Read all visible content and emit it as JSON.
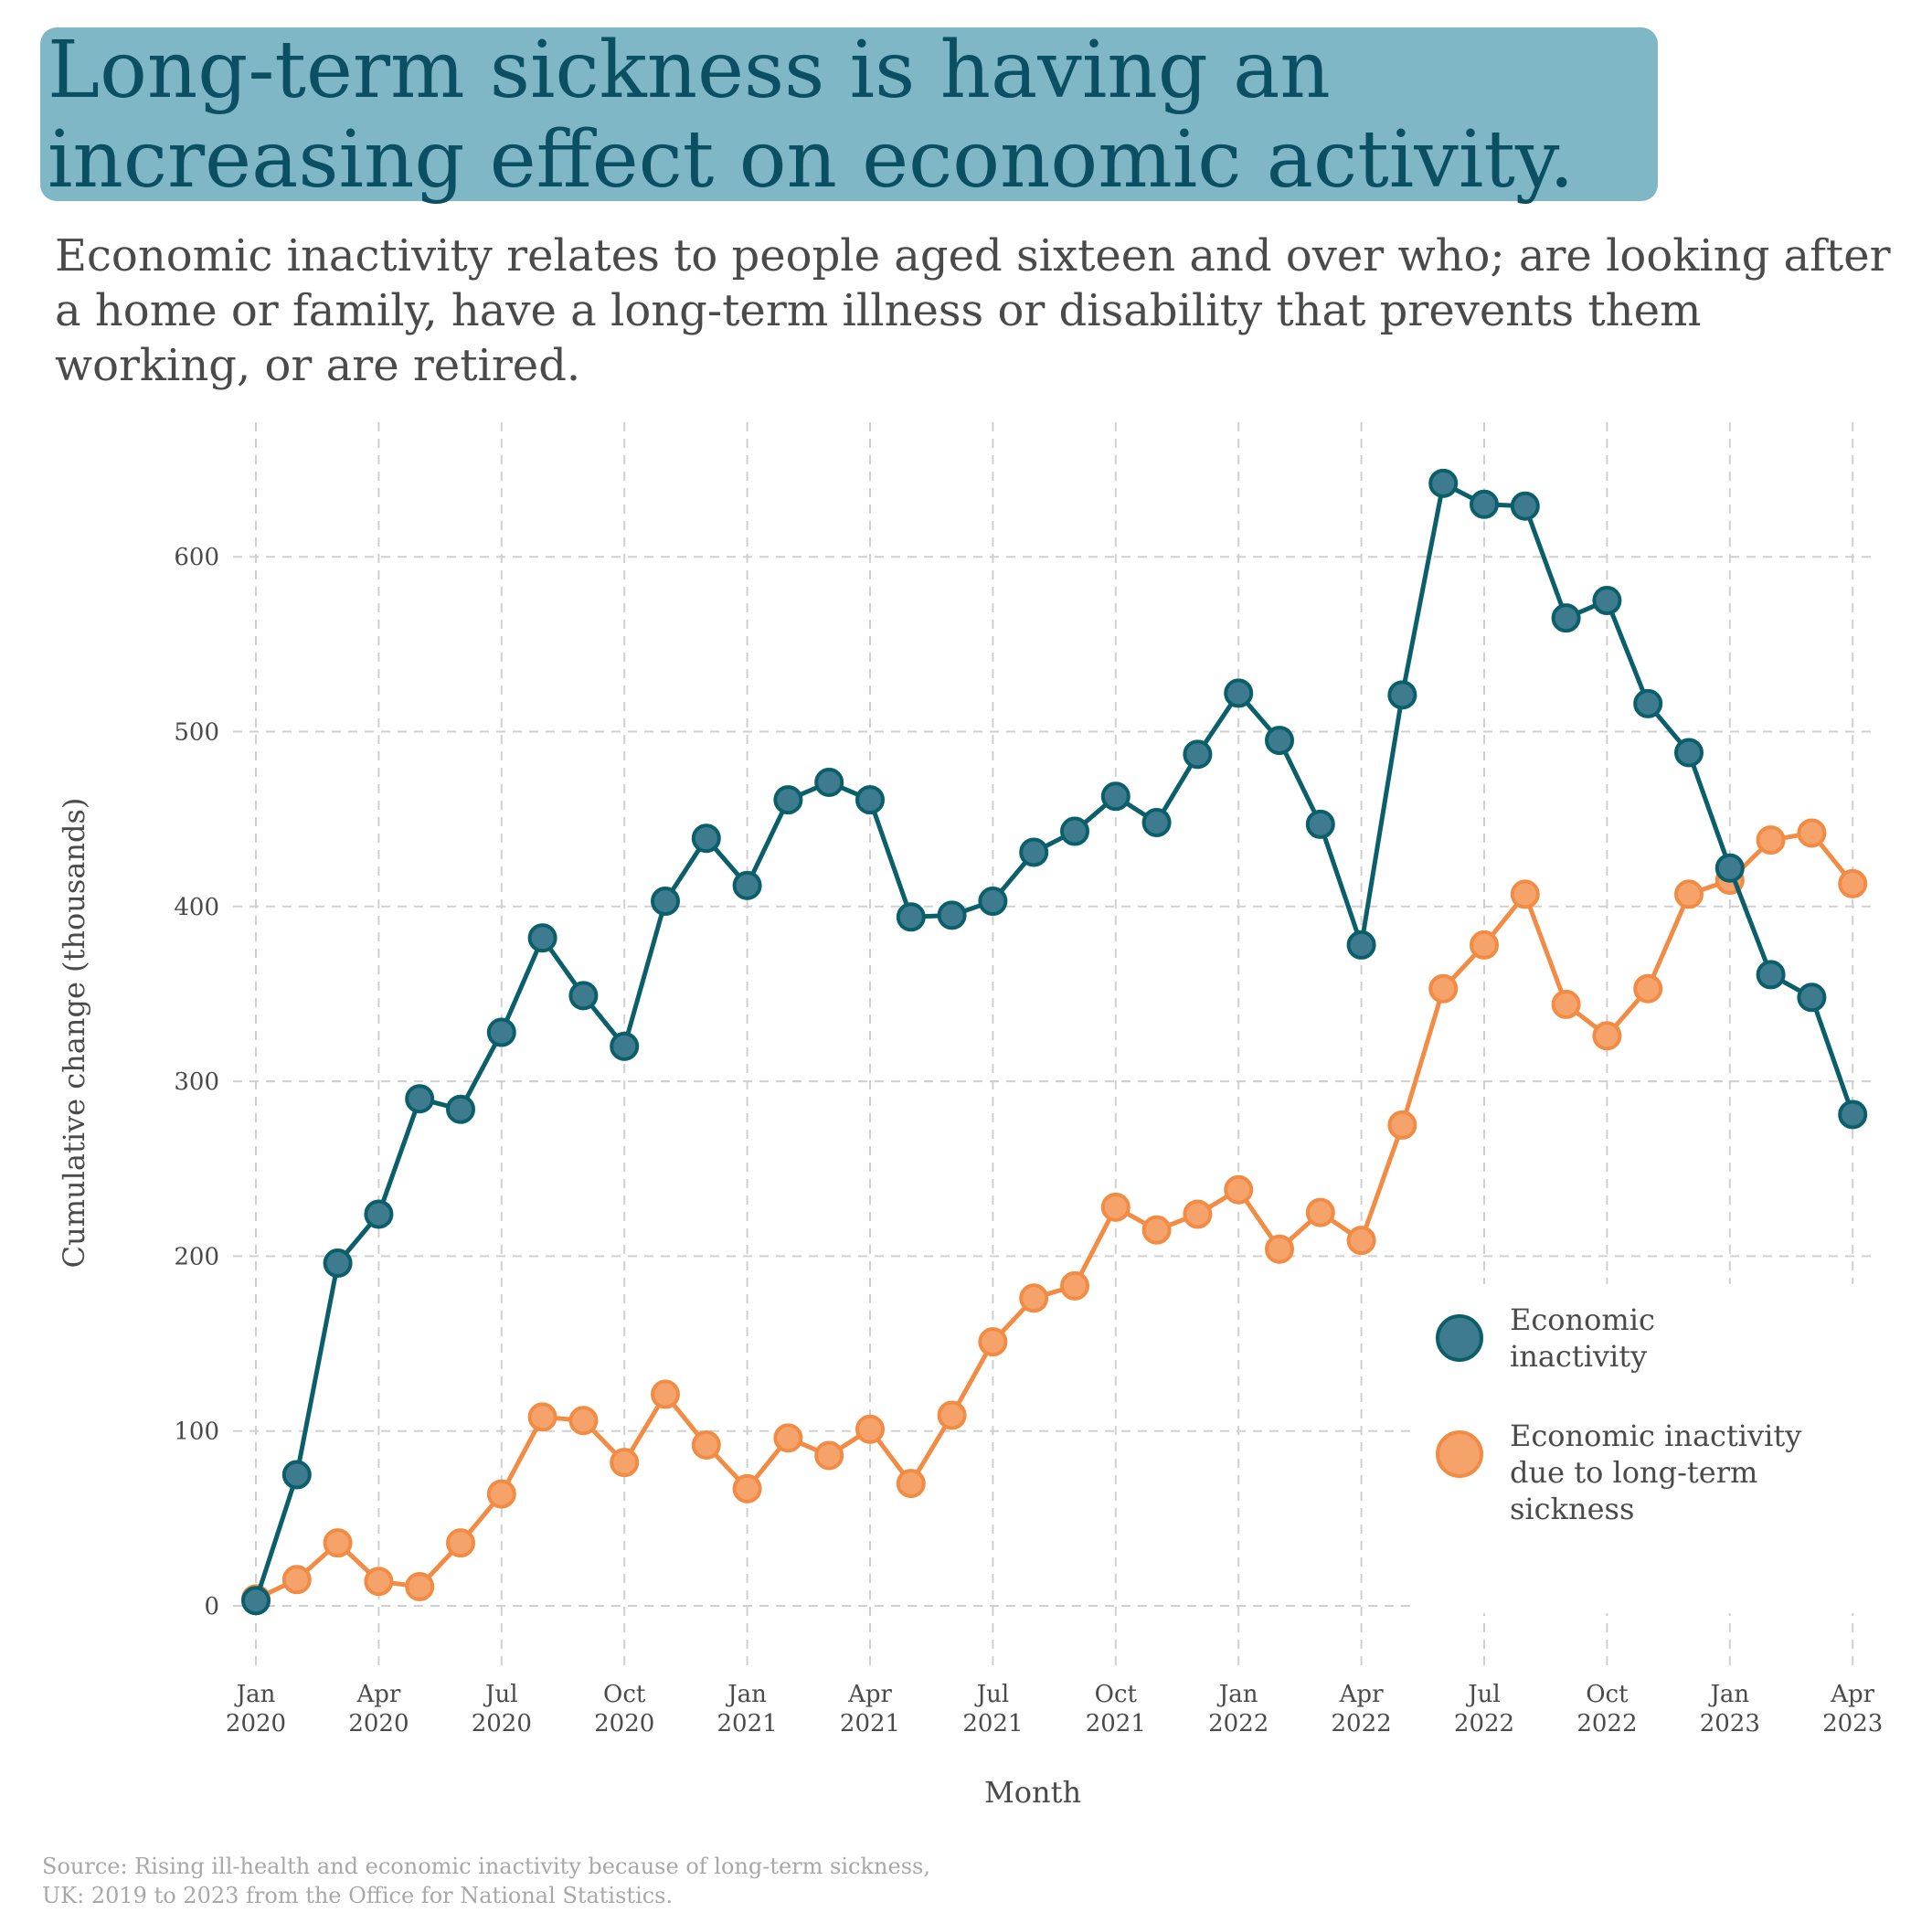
{
  "title": "Long-term sickness is having an increasing effect on economic activity.",
  "subtitle": "Economic inactivity relates to people aged sixteen and over who; are looking after a home or family, have a long-term illness or disability that prevents them working, or are retired.",
  "source": "Source: Rising ill-health and economic inactivity because of long-term sickness, UK: 2019 to 2023 from the Office for National Statistics.",
  "colors": {
    "inactivity": "#0b5f6a",
    "inactivity_marker": "#3f7b8f",
    "sickness": "#f28c45",
    "sickness_marker": "#f5a36a",
    "grid": "#d0d0d0",
    "title_bg": "#7fb7c6",
    "title_text": "#0b4f62"
  },
  "chart_data": {
    "type": "line",
    "xlabel": "Month",
    "ylabel": "Cumulative change (thousands)",
    "ylim": [
      -40,
      680
    ],
    "yticks": [
      0,
      100,
      200,
      300,
      400,
      500,
      600
    ],
    "xticks": [
      {
        "index": 0,
        "line1": "Jan",
        "line2": "2020"
      },
      {
        "index": 3,
        "line1": "Apr",
        "line2": "2020"
      },
      {
        "index": 6,
        "line1": "Jul",
        "line2": "2020"
      },
      {
        "index": 9,
        "line1": "Oct",
        "line2": "2020"
      },
      {
        "index": 12,
        "line1": "Jan",
        "line2": "2021"
      },
      {
        "index": 15,
        "line1": "Apr",
        "line2": "2021"
      },
      {
        "index": 18,
        "line1": "Jul",
        "line2": "2021"
      },
      {
        "index": 21,
        "line1": "Oct",
        "line2": "2021"
      },
      {
        "index": 24,
        "line1": "Jan",
        "line2": "2022"
      },
      {
        "index": 27,
        "line1": "Apr",
        "line2": "2022"
      },
      {
        "index": 30,
        "line1": "Jul",
        "line2": "2022"
      },
      {
        "index": 33,
        "line1": "Oct",
        "line2": "2022"
      },
      {
        "index": 36,
        "line1": "Jan",
        "line2": "2023"
      },
      {
        "index": 39,
        "line1": "Apr",
        "line2": "2023"
      }
    ],
    "x": [
      "2020-01",
      "2020-02",
      "2020-03",
      "2020-04",
      "2020-05",
      "2020-06",
      "2020-07",
      "2020-08",
      "2020-09",
      "2020-10",
      "2020-11",
      "2020-12",
      "2021-01",
      "2021-02",
      "2021-03",
      "2021-04",
      "2021-05",
      "2021-06",
      "2021-07",
      "2021-08",
      "2021-09",
      "2021-10",
      "2021-11",
      "2021-12",
      "2022-01",
      "2022-02",
      "2022-03",
      "2022-04",
      "2022-05",
      "2022-06",
      "2022-07",
      "2022-08",
      "2022-09",
      "2022-10",
      "2022-11",
      "2022-12",
      "2023-01",
      "2023-02",
      "2023-03",
      "2023-04"
    ],
    "series": [
      {
        "name": "Economic inactivity",
        "values": [
          3,
          75,
          196,
          224,
          290,
          284,
          328,
          382,
          349,
          320,
          403,
          439,
          412,
          461,
          471,
          461,
          394,
          395,
          403,
          431,
          443,
          463,
          448,
          487,
          522,
          495,
          447,
          378,
          521,
          642,
          630,
          629,
          565,
          575,
          516,
          488,
          422,
          361,
          348,
          281
        ]
      },
      {
        "name": "Economic inactivity due to long-term sickness",
        "values": [
          4,
          15,
          36,
          14,
          11,
          36,
          64,
          108,
          106,
          82,
          121,
          92,
          67,
          96,
          86,
          101,
          70,
          109,
          151,
          176,
          183,
          228,
          215,
          224,
          238,
          204,
          225,
          209,
          275,
          353,
          378,
          407,
          344,
          326,
          353,
          407,
          415,
          438,
          442,
          413
        ]
      }
    ],
    "legend": {
      "position": "right",
      "items": [
        "Economic inactivity",
        "Economic inactivity due to long-term sickness"
      ]
    },
    "grid": true
  }
}
